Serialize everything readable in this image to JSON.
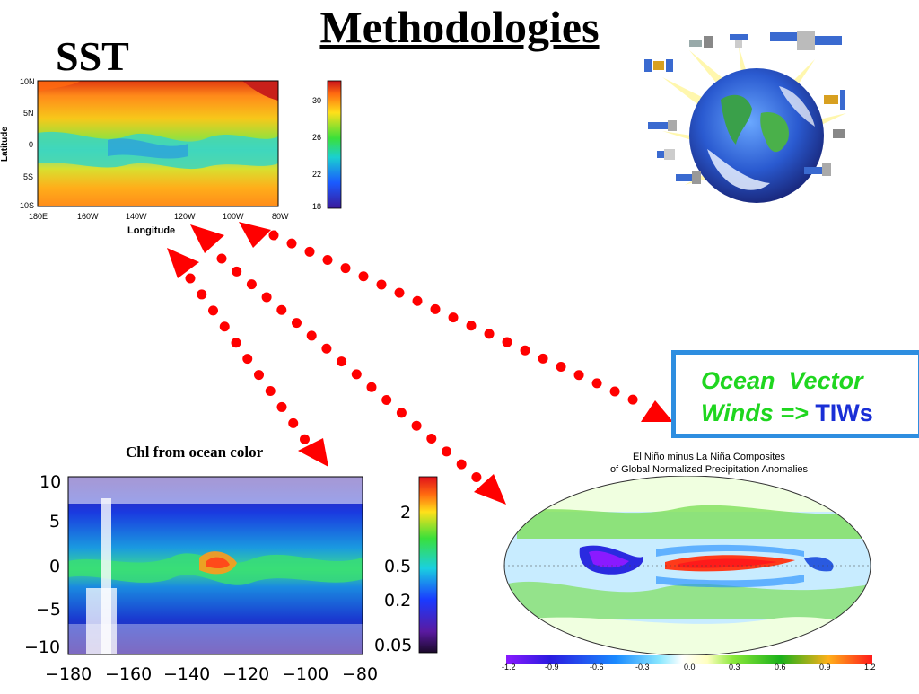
{
  "title": "Methodologies",
  "sst_label": "SST",
  "sst_map": {
    "lat_ticks": [
      "10N",
      "5N",
      "0",
      "5S",
      "10S"
    ],
    "lon_ticks": [
      "180E",
      "160W",
      "140W",
      "120W",
      "100W",
      "80W"
    ],
    "ylabel": "Latitude",
    "xlabel": "Longitude",
    "colorbar_ticks": [
      "30",
      "26",
      "22",
      "18"
    ]
  },
  "chl_title": "Chl from ocean color",
  "chl_map": {
    "lat_ticks": [
      "10",
      "5",
      "0",
      "−5",
      "−10"
    ],
    "lon_ticks": [
      "−180",
      "−160",
      "−140",
      "−120",
      "−100",
      "−80"
    ],
    "colorbar_ticks": [
      "2",
      "0.5",
      "0.2",
      "0.05"
    ]
  },
  "ocean_vector": {
    "line1": "Ocean  Vector",
    "line2_green": "Winds =>",
    "line2_blue": "TIWs"
  },
  "precip_map": {
    "title_line1": "El Niño minus La Niña Composites",
    "title_line2": "of Global Normalized Precipitation Anomalies",
    "colorbar_ticks": [
      "-1.2",
      "-0.9",
      "-0.6",
      "-0.3",
      "0.0",
      "0.3",
      "0.6",
      "0.9",
      "1.2"
    ]
  },
  "colors": {
    "arrow": "#ff0000",
    "box_border": "#2e8ee0"
  }
}
